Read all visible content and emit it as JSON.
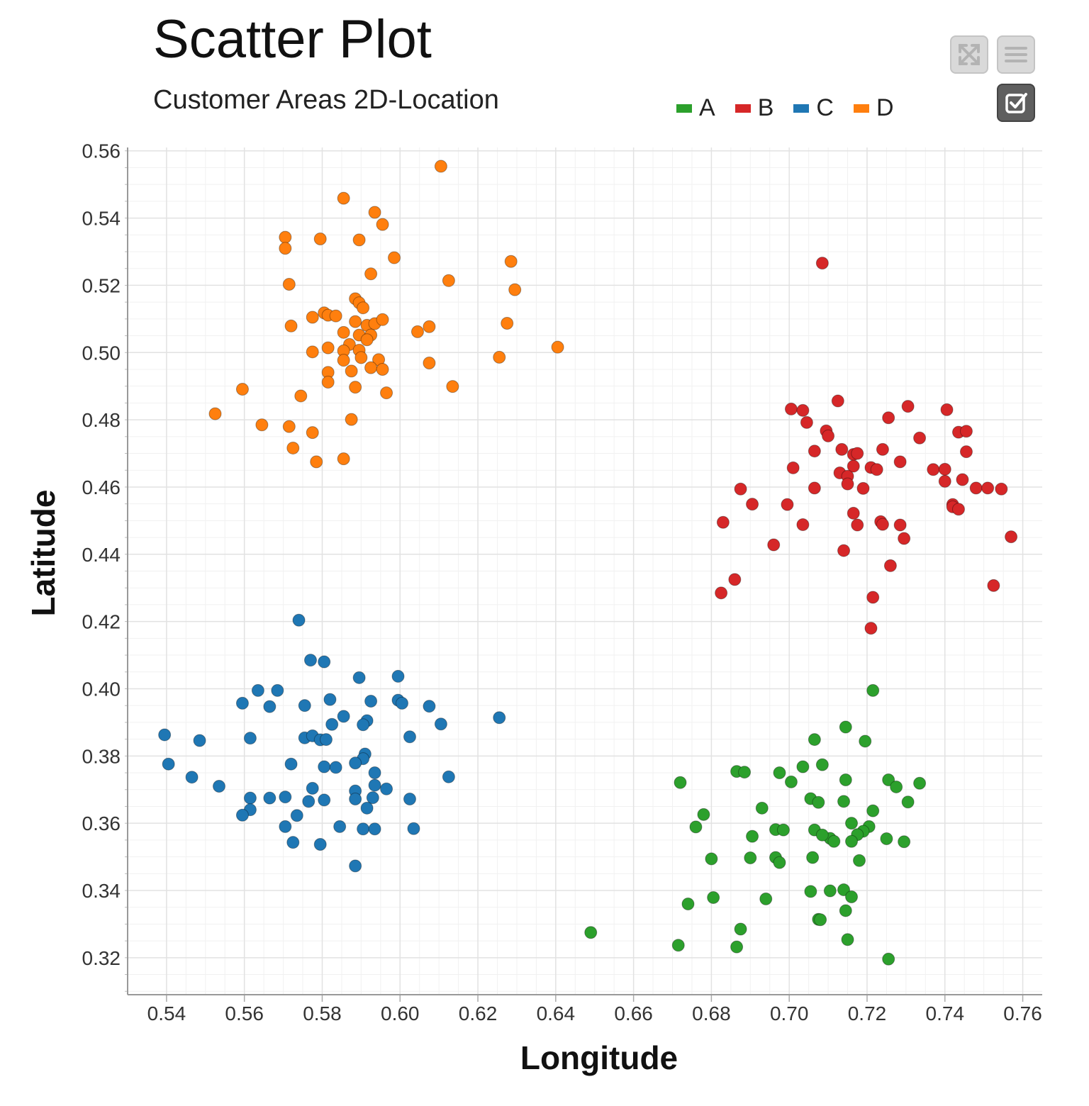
{
  "title": "Scatter Plot",
  "subtitle": "Customer Areas 2D-Location",
  "toolbar": {
    "expand_icon": "expand-icon",
    "menu_icon": "menu-icon",
    "checkbox_icon": "checkbox-icon"
  },
  "colors": {
    "A": "#2ca02c",
    "B": "#d62728",
    "C": "#1f77b4",
    "D": "#ff7f0e"
  },
  "chart_data": {
    "type": "scatter",
    "title": "Scatter Plot",
    "subtitle": "Customer Areas 2D-Location",
    "xlabel": "Longitude",
    "ylabel": "Latitude",
    "xlim": [
      0.53,
      0.765
    ],
    "ylim": [
      0.309,
      0.561
    ],
    "grid": true,
    "legend_position": "top-right",
    "x_ticks": [
      "0.54",
      "0.56",
      "0.58",
      "0.60",
      "0.62",
      "0.64",
      "0.66",
      "0.68",
      "0.70",
      "0.72",
      "0.74",
      "0.76"
    ],
    "y_ticks": [
      "0.32",
      "0.34",
      "0.36",
      "0.38",
      "0.40",
      "0.42",
      "0.44",
      "0.46",
      "0.48",
      "0.50",
      "0.52",
      "0.54",
      "0.56"
    ],
    "series": [
      {
        "name": "A",
        "color": "#2ca02c",
        "points": [
          [
            0.7215,
            0.3995
          ],
          [
            0.7145,
            0.3886
          ],
          [
            0.7195,
            0.3844
          ],
          [
            0.7065,
            0.3849
          ],
          [
            0.6865,
            0.3754
          ],
          [
            0.6885,
            0.3752
          ],
          [
            0.6975,
            0.375
          ],
          [
            0.7035,
            0.3768
          ],
          [
            0.7085,
            0.3774
          ],
          [
            0.672,
            0.3721
          ],
          [
            0.7005,
            0.3723
          ],
          [
            0.7145,
            0.3729
          ],
          [
            0.7255,
            0.3729
          ],
          [
            0.7275,
            0.3708
          ],
          [
            0.7335,
            0.3719
          ],
          [
            0.678,
            0.3626
          ],
          [
            0.693,
            0.3645
          ],
          [
            0.7055,
            0.3673
          ],
          [
            0.7075,
            0.3662
          ],
          [
            0.714,
            0.3665
          ],
          [
            0.7305,
            0.3663
          ],
          [
            0.7215,
            0.3637
          ],
          [
            0.676,
            0.3589
          ],
          [
            0.6965,
            0.3581
          ],
          [
            0.6985,
            0.358
          ],
          [
            0.7065,
            0.358
          ],
          [
            0.7105,
            0.3555
          ],
          [
            0.716,
            0.36
          ],
          [
            0.7205,
            0.359
          ],
          [
            0.719,
            0.3576
          ],
          [
            0.7175,
            0.3566
          ],
          [
            0.6905,
            0.3561
          ],
          [
            0.7085,
            0.3565
          ],
          [
            0.7115,
            0.3546
          ],
          [
            0.716,
            0.3546
          ],
          [
            0.725,
            0.3554
          ],
          [
            0.7295,
            0.3545
          ],
          [
            0.68,
            0.3494
          ],
          [
            0.69,
            0.3497
          ],
          [
            0.6965,
            0.3498
          ],
          [
            0.6975,
            0.3483
          ],
          [
            0.706,
            0.3498
          ],
          [
            0.718,
            0.3489
          ],
          [
            0.6805,
            0.3379
          ],
          [
            0.694,
            0.3375
          ],
          [
            0.7055,
            0.3397
          ],
          [
            0.7105,
            0.3399
          ],
          [
            0.714,
            0.3402
          ],
          [
            0.716,
            0.3381
          ],
          [
            0.674,
            0.336
          ],
          [
            0.7145,
            0.334
          ],
          [
            0.6875,
            0.3285
          ],
          [
            0.7075,
            0.3314
          ],
          [
            0.708,
            0.3313
          ],
          [
            0.649,
            0.3275
          ],
          [
            0.715,
            0.3254
          ],
          [
            0.6715,
            0.3237
          ],
          [
            0.6865,
            0.3232
          ],
          [
            0.7255,
            0.3196
          ]
        ]
      },
      {
        "name": "B",
        "color": "#d62728",
        "points": [
          [
            0.7085,
            0.5266
          ],
          [
            0.7125,
            0.4856
          ],
          [
            0.7005,
            0.4832
          ],
          [
            0.7035,
            0.4828
          ],
          [
            0.7305,
            0.484
          ],
          [
            0.7405,
            0.483
          ],
          [
            0.7255,
            0.4806
          ],
          [
            0.7045,
            0.4792
          ],
          [
            0.7095,
            0.4767
          ],
          [
            0.71,
            0.4752
          ],
          [
            0.7435,
            0.4763
          ],
          [
            0.7455,
            0.4766
          ],
          [
            0.7335,
            0.4746
          ],
          [
            0.7135,
            0.4712
          ],
          [
            0.7165,
            0.4697
          ],
          [
            0.7175,
            0.47
          ],
          [
            0.724,
            0.4712
          ],
          [
            0.7065,
            0.4707
          ],
          [
            0.7455,
            0.4705
          ],
          [
            0.7285,
            0.4675
          ],
          [
            0.701,
            0.4657
          ],
          [
            0.7165,
            0.4662
          ],
          [
            0.721,
            0.4658
          ],
          [
            0.7225,
            0.4652
          ],
          [
            0.737,
            0.4652
          ],
          [
            0.74,
            0.4653
          ],
          [
            0.713,
            0.4642
          ],
          [
            0.715,
            0.4632
          ],
          [
            0.7445,
            0.4622
          ],
          [
            0.74,
            0.4617
          ],
          [
            0.715,
            0.4609
          ],
          [
            0.7065,
            0.4597
          ],
          [
            0.719,
            0.4596
          ],
          [
            0.6875,
            0.4594
          ],
          [
            0.748,
            0.4597
          ],
          [
            0.751,
            0.4597
          ],
          [
            0.7545,
            0.4594
          ],
          [
            0.6905,
            0.4549
          ],
          [
            0.6995,
            0.4548
          ],
          [
            0.742,
            0.4548
          ],
          [
            0.742,
            0.4541
          ],
          [
            0.7165,
            0.4522
          ],
          [
            0.7435,
            0.4534
          ],
          [
            0.683,
            0.4495
          ],
          [
            0.7035,
            0.4488
          ],
          [
            0.7235,
            0.4497
          ],
          [
            0.724,
            0.4489
          ],
          [
            0.7175,
            0.4487
          ],
          [
            0.7285,
            0.4487
          ],
          [
            0.7295,
            0.4447
          ],
          [
            0.757,
            0.4452
          ],
          [
            0.696,
            0.4428
          ],
          [
            0.714,
            0.4411
          ],
          [
            0.726,
            0.4366
          ],
          [
            0.686,
            0.4325
          ],
          [
            0.6825,
            0.4285
          ],
          [
            0.7215,
            0.4272
          ],
          [
            0.7525,
            0.4307
          ],
          [
            0.721,
            0.418
          ]
        ]
      },
      {
        "name": "C",
        "color": "#1f77b4",
        "points": [
          [
            0.574,
            0.4204
          ],
          [
            0.577,
            0.4085
          ],
          [
            0.5805,
            0.408
          ],
          [
            0.5895,
            0.4033
          ],
          [
            0.5995,
            0.4037
          ],
          [
            0.5635,
            0.3995
          ],
          [
            0.5685,
            0.3995
          ],
          [
            0.5595,
            0.3957
          ],
          [
            0.5665,
            0.3947
          ],
          [
            0.5755,
            0.395
          ],
          [
            0.582,
            0.3968
          ],
          [
            0.5925,
            0.3963
          ],
          [
            0.5995,
            0.3966
          ],
          [
            0.6005,
            0.3957
          ],
          [
            0.6075,
            0.3948
          ],
          [
            0.5855,
            0.3918
          ],
          [
            0.5915,
            0.3905
          ],
          [
            0.5905,
            0.3893
          ],
          [
            0.5825,
            0.3894
          ],
          [
            0.6105,
            0.3895
          ],
          [
            0.6255,
            0.3914
          ],
          [
            0.5395,
            0.3863
          ],
          [
            0.5485,
            0.3846
          ],
          [
            0.5615,
            0.3853
          ],
          [
            0.5755,
            0.3854
          ],
          [
            0.5775,
            0.386
          ],
          [
            0.5795,
            0.3848
          ],
          [
            0.581,
            0.3849
          ],
          [
            0.6025,
            0.3857
          ],
          [
            0.591,
            0.3806
          ],
          [
            0.5905,
            0.3792
          ],
          [
            0.5405,
            0.3776
          ],
          [
            0.572,
            0.3776
          ],
          [
            0.5805,
            0.3768
          ],
          [
            0.5835,
            0.3766
          ],
          [
            0.5885,
            0.3779
          ],
          [
            0.5935,
            0.375
          ],
          [
            0.6125,
            0.3738
          ],
          [
            0.5465,
            0.3737
          ],
          [
            0.5535,
            0.371
          ],
          [
            0.5775,
            0.3704
          ],
          [
            0.5885,
            0.3696
          ],
          [
            0.5935,
            0.3713
          ],
          [
            0.5965,
            0.3702
          ],
          [
            0.5615,
            0.3675
          ],
          [
            0.5665,
            0.3675
          ],
          [
            0.5705,
            0.3678
          ],
          [
            0.5765,
            0.3665
          ],
          [
            0.5805,
            0.3669
          ],
          [
            0.5885,
            0.3672
          ],
          [
            0.593,
            0.3676
          ],
          [
            0.6025,
            0.3672
          ],
          [
            0.5615,
            0.364
          ],
          [
            0.5595,
            0.3624
          ],
          [
            0.5735,
            0.3623
          ],
          [
            0.5915,
            0.3645
          ],
          [
            0.5705,
            0.359
          ],
          [
            0.5845,
            0.359
          ],
          [
            0.5905,
            0.3583
          ],
          [
            0.5935,
            0.3583
          ],
          [
            0.6035,
            0.3584
          ],
          [
            0.5725,
            0.3543
          ],
          [
            0.5795,
            0.3537
          ],
          [
            0.5885,
            0.3473
          ]
        ]
      },
      {
        "name": "D",
        "color": "#ff7f0e",
        "points": [
          [
            0.6105,
            0.5554
          ],
          [
            0.5855,
            0.5459
          ],
          [
            0.5935,
            0.5417
          ],
          [
            0.5955,
            0.5381
          ],
          [
            0.5705,
            0.5343
          ],
          [
            0.5795,
            0.5338
          ],
          [
            0.5895,
            0.5335
          ],
          [
            0.5705,
            0.531
          ],
          [
            0.5985,
            0.5282
          ],
          [
            0.6285,
            0.5271
          ],
          [
            0.5925,
            0.5234
          ],
          [
            0.5715,
            0.5203
          ],
          [
            0.6125,
            0.5214
          ],
          [
            0.6295,
            0.5187
          ],
          [
            0.5885,
            0.516
          ],
          [
            0.5895,
            0.5148
          ],
          [
            0.5905,
            0.5133
          ],
          [
            0.5775,
            0.5105
          ],
          [
            0.5805,
            0.5118
          ],
          [
            0.5815,
            0.5111
          ],
          [
            0.5835,
            0.5109
          ],
          [
            0.5885,
            0.5092
          ],
          [
            0.5915,
            0.5081
          ],
          [
            0.5935,
            0.5086
          ],
          [
            0.5955,
            0.5098
          ],
          [
            0.572,
            0.5079
          ],
          [
            0.5855,
            0.506
          ],
          [
            0.5895,
            0.5052
          ],
          [
            0.5925,
            0.5052
          ],
          [
            0.6045,
            0.5062
          ],
          [
            0.6075,
            0.5077
          ],
          [
            0.6275,
            0.5087
          ],
          [
            0.5915,
            0.5038
          ],
          [
            0.587,
            0.5024
          ],
          [
            0.5815,
            0.5014
          ],
          [
            0.5855,
            0.5005
          ],
          [
            0.5895,
            0.5007
          ],
          [
            0.5775,
            0.5002
          ],
          [
            0.6405,
            0.5016
          ],
          [
            0.5855,
            0.4977
          ],
          [
            0.59,
            0.4985
          ],
          [
            0.5945,
            0.4979
          ],
          [
            0.6075,
            0.4969
          ],
          [
            0.6255,
            0.4986
          ],
          [
            0.5815,
            0.4941
          ],
          [
            0.5875,
            0.4945
          ],
          [
            0.5925,
            0.4955
          ],
          [
            0.5955,
            0.495
          ],
          [
            0.5595,
            0.4891
          ],
          [
            0.5815,
            0.4912
          ],
          [
            0.5885,
            0.4897
          ],
          [
            0.5965,
            0.488
          ],
          [
            0.6135,
            0.4899
          ],
          [
            0.5745,
            0.4871
          ],
          [
            0.5645,
            0.4785
          ],
          [
            0.5715,
            0.478
          ],
          [
            0.5775,
            0.4762
          ],
          [
            0.5875,
            0.4801
          ],
          [
            0.5525,
            0.4818
          ],
          [
            0.5725,
            0.4716
          ],
          [
            0.5855,
            0.4684
          ],
          [
            0.5785,
            0.4675
          ]
        ]
      }
    ]
  }
}
